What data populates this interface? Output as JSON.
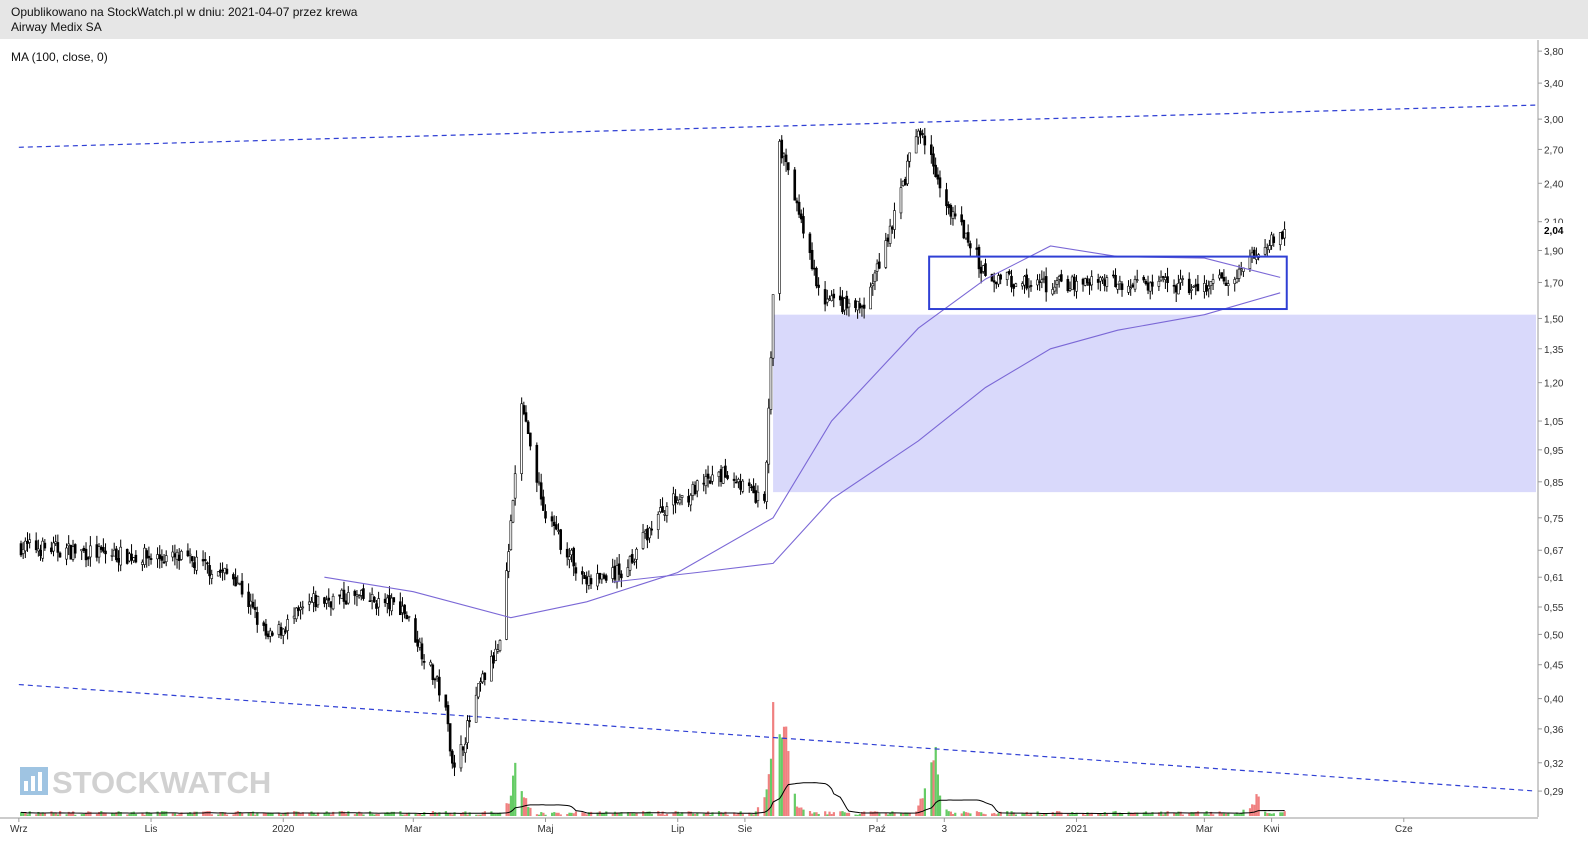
{
  "header": {
    "published": "Opublikowano na StockWatch.pl w dniu: 2021-04-07 przez krewa",
    "instrument": "Airway Medix SA"
  },
  "indicator": {
    "label": "MA (100, close, 0)"
  },
  "watermark": {
    "text": "STOCKWATCH"
  },
  "colors": {
    "candle": "#000000",
    "ma": "#7b68d6",
    "trendline": "#2f3fd4",
    "zone": "#d9d9fb",
    "range_box": "#2f3fd4",
    "volume_up": "#66cc66",
    "volume_down": "#f08080",
    "volume_ma": "#000000"
  },
  "chart_data": {
    "type": "candlestick",
    "y_scale": "log",
    "ylim": [
      0.265,
      3.95
    ],
    "y_ticks": [
      "3,80",
      "3,40",
      "3,00",
      "2,70",
      "2,40",
      "2,10",
      "1,90",
      "1,70",
      "1,50",
      "1,35",
      "1,20",
      "1,05",
      "0,95",
      "0,85",
      "0,75",
      "0,67",
      "0,61",
      "0,55",
      "0,50",
      "0,45",
      "0,40",
      "0,36",
      "0,32",
      "0,29"
    ],
    "y_tick_values": [
      3.8,
      3.4,
      3.0,
      2.7,
      2.4,
      2.1,
      1.9,
      1.7,
      1.5,
      1.35,
      1.2,
      1.05,
      0.95,
      0.85,
      0.75,
      0.67,
      0.61,
      0.55,
      0.5,
      0.45,
      0.4,
      0.36,
      0.32,
      0.29
    ],
    "last_price_label": "2,04",
    "last_price": 2.04,
    "x_ticks": [
      "Wrz",
      "Lis",
      "2020",
      "Mar",
      "Maj",
      "Lip",
      "Sie",
      "Paź",
      "3",
      "2021",
      "Mar",
      "Kwi",
      "Cze"
    ],
    "x_tick_dates": [
      "2019-09-01",
      "2019-11-01",
      "2020-01-01",
      "2020-03-01",
      "2020-05-01",
      "2020-07-01",
      "2020-08-01",
      "2020-10-01",
      "2020-11-01",
      "2021-01-01",
      "2021-03-01",
      "2021-04-01",
      "2021-06-01"
    ],
    "price_path": [
      [
        "2019-09-01",
        0.68
      ],
      [
        "2019-10-15",
        0.66
      ],
      [
        "2019-11-15",
        0.65
      ],
      [
        "2019-12-10",
        0.61
      ],
      [
        "2019-12-25",
        0.49
      ],
      [
        "2020-01-15",
        0.56
      ],
      [
        "2020-02-01",
        0.57
      ],
      [
        "2020-02-25",
        0.55
      ],
      [
        "2020-03-15",
        0.4
      ],
      [
        "2020-03-20",
        0.31
      ],
      [
        "2020-04-01",
        0.42
      ],
      [
        "2020-04-10",
        0.48
      ],
      [
        "2020-04-20",
        1.1
      ],
      [
        "2020-05-01",
        0.75
      ],
      [
        "2020-05-20",
        0.6
      ],
      [
        "2020-06-05",
        0.62
      ],
      [
        "2020-06-25",
        0.78
      ],
      [
        "2020-07-10",
        0.83
      ],
      [
        "2020-07-25",
        0.88
      ],
      [
        "2020-08-10",
        0.78
      ],
      [
        "2020-08-14",
        1.6
      ],
      [
        "2020-08-16",
        2.8
      ],
      [
        "2020-08-25",
        2.2
      ],
      [
        "2020-09-05",
        1.6
      ],
      [
        "2020-09-25",
        1.55
      ],
      [
        "2020-10-10",
        2.2
      ],
      [
        "2020-10-20",
        2.9
      ],
      [
        "2020-11-01",
        2.3
      ],
      [
        "2020-11-20",
        1.75
      ],
      [
        "2020-12-15",
        1.68
      ],
      [
        "2021-01-10",
        1.7
      ],
      [
        "2021-02-15",
        1.68
      ],
      [
        "2021-03-01",
        1.66
      ],
      [
        "2021-03-15",
        1.75
      ],
      [
        "2021-04-07",
        2.04
      ]
    ],
    "ma_lines": [
      {
        "points": [
          [
            "2020-01-20",
            0.61
          ],
          [
            "2020-03-01",
            0.58
          ],
          [
            "2020-04-15",
            0.53
          ],
          [
            "2020-05-20",
            0.56
          ],
          [
            "2020-07-01",
            0.62
          ],
          [
            "2020-08-14",
            0.75
          ],
          [
            "2020-09-10",
            1.05
          ],
          [
            "2020-10-20",
            1.45
          ],
          [
            "2020-11-20",
            1.72
          ],
          [
            "2020-12-20",
            1.93
          ],
          [
            "2021-01-20",
            1.86
          ],
          [
            "2021-03-01",
            1.85
          ],
          [
            "2021-04-05",
            1.73
          ]
        ]
      },
      {
        "points": [
          [
            "2020-06-01",
            0.6
          ],
          [
            "2020-07-10",
            0.62
          ],
          [
            "2020-08-14",
            0.64
          ],
          [
            "2020-09-10",
            0.8
          ],
          [
            "2020-10-20",
            0.98
          ],
          [
            "2020-11-20",
            1.18
          ],
          [
            "2020-12-20",
            1.35
          ],
          [
            "2021-01-20",
            1.44
          ],
          [
            "2021-03-01",
            1.52
          ],
          [
            "2021-04-05",
            1.64
          ]
        ]
      }
    ],
    "trendlines": [
      {
        "style": "dashed",
        "from": [
          "2019-09-01",
          2.72
        ],
        "to": [
          "2021-08-01",
          3.15
        ]
      },
      {
        "style": "dashed",
        "from": [
          "2019-09-01",
          0.42
        ],
        "to": [
          "2021-08-01",
          0.29
        ]
      }
    ],
    "support_zone": {
      "from_date": "2020-08-14",
      "to_date": "2021-08-01",
      "low": 0.82,
      "high": 1.52
    },
    "range_box": {
      "from_date": "2020-10-25",
      "to_date": "2021-04-08",
      "low": 1.55,
      "high": 1.86
    },
    "volume": {
      "spikes": [
        [
          "2020-04-18",
          0.45
        ],
        [
          "2020-08-15",
          1.0
        ],
        [
          "2020-08-20",
          0.62
        ],
        [
          "2020-10-25",
          0.38
        ],
        [
          "2020-10-28",
          0.25
        ],
        [
          "2021-03-25",
          0.12
        ]
      ],
      "baseline": 0.02
    }
  }
}
